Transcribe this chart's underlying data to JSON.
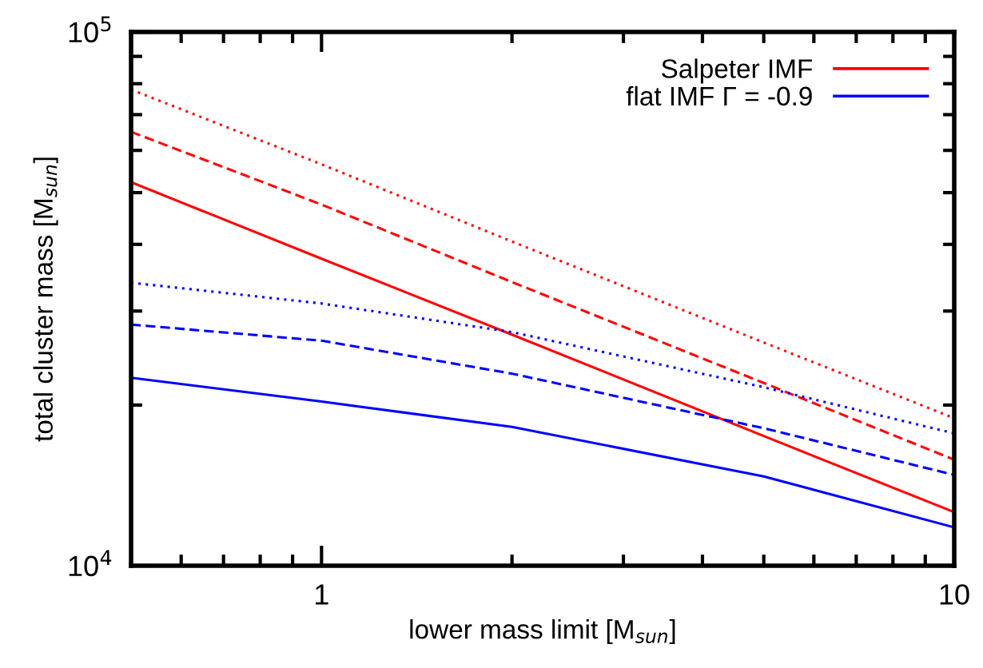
{
  "chart_data": {
    "type": "line",
    "xlabel": "lower mass limit [M$_{sun}$]",
    "ylabel": "total cluster mass [M$_{sun}$]",
    "x": [
      0.5,
      1,
      2,
      5,
      10
    ],
    "series": [
      {
        "name": "Salpeter IMF",
        "color": "#ff0000",
        "line_style": "solid",
        "values": [
          52300,
          37600,
          27100,
          17500,
          12600
        ]
      },
      {
        "name": "flat IMF Γ = -0.9",
        "color": "#0000ff",
        "line_style": "solid",
        "values": [
          22500,
          20300,
          18200,
          14700,
          11800
        ]
      },
      {
        "color": "#ff0000",
        "line_style": "dashed",
        "values": [
          65000,
          47500,
          34000,
          22000,
          15800
        ]
      },
      {
        "color": "#0000ff",
        "line_style": "dashed",
        "values": [
          28300,
          26400,
          22900,
          18100,
          14800
        ]
      },
      {
        "color": "#ff0000",
        "line_style": "dotted",
        "values": [
          78000,
          56500,
          40500,
          26200,
          18900
        ]
      },
      {
        "color": "#0000ff",
        "line_style": "dotted",
        "values": [
          33900,
          31000,
          27400,
          21600,
          17700
        ]
      }
    ],
    "log": "xy",
    "xlim": [
      0.5,
      10
    ],
    "ylim": [
      10000,
      100000
    ],
    "xticks": [
      {
        "value": 0.6,
        "label": null
      },
      {
        "value": 0.7,
        "label": null
      },
      {
        "value": 0.8,
        "label": null
      },
      {
        "value": 0.9,
        "label": null
      },
      1,
      {
        "value": 2,
        "label": null
      },
      {
        "value": 3,
        "label": null
      },
      {
        "value": 4,
        "label": null
      },
      {
        "value": 5,
        "label": null
      },
      {
        "value": 6,
        "label": null
      },
      {
        "value": 7,
        "label": null
      },
      {
        "value": 8,
        "label": null
      },
      {
        "value": 9,
        "label": null
      },
      10
    ],
    "yticks": [
      {
        "value": 10000,
        "label": "10$^{4}$"
      },
      {
        "value": 20000,
        "label": null
      },
      {
        "value": 30000,
        "label": null
      },
      {
        "value": 40000,
        "label": null
      },
      {
        "value": 50000,
        "label": null
      },
      {
        "value": 60000,
        "label": null
      },
      {
        "value": 70000,
        "label": null
      },
      {
        "value": 80000,
        "label": null
      },
      {
        "value": 90000,
        "label": null
      },
      {
        "value": 100000,
        "label": "10$^{5}$"
      }
    ],
    "grid": false,
    "legend": "top right",
    "marker": "none"
  }
}
